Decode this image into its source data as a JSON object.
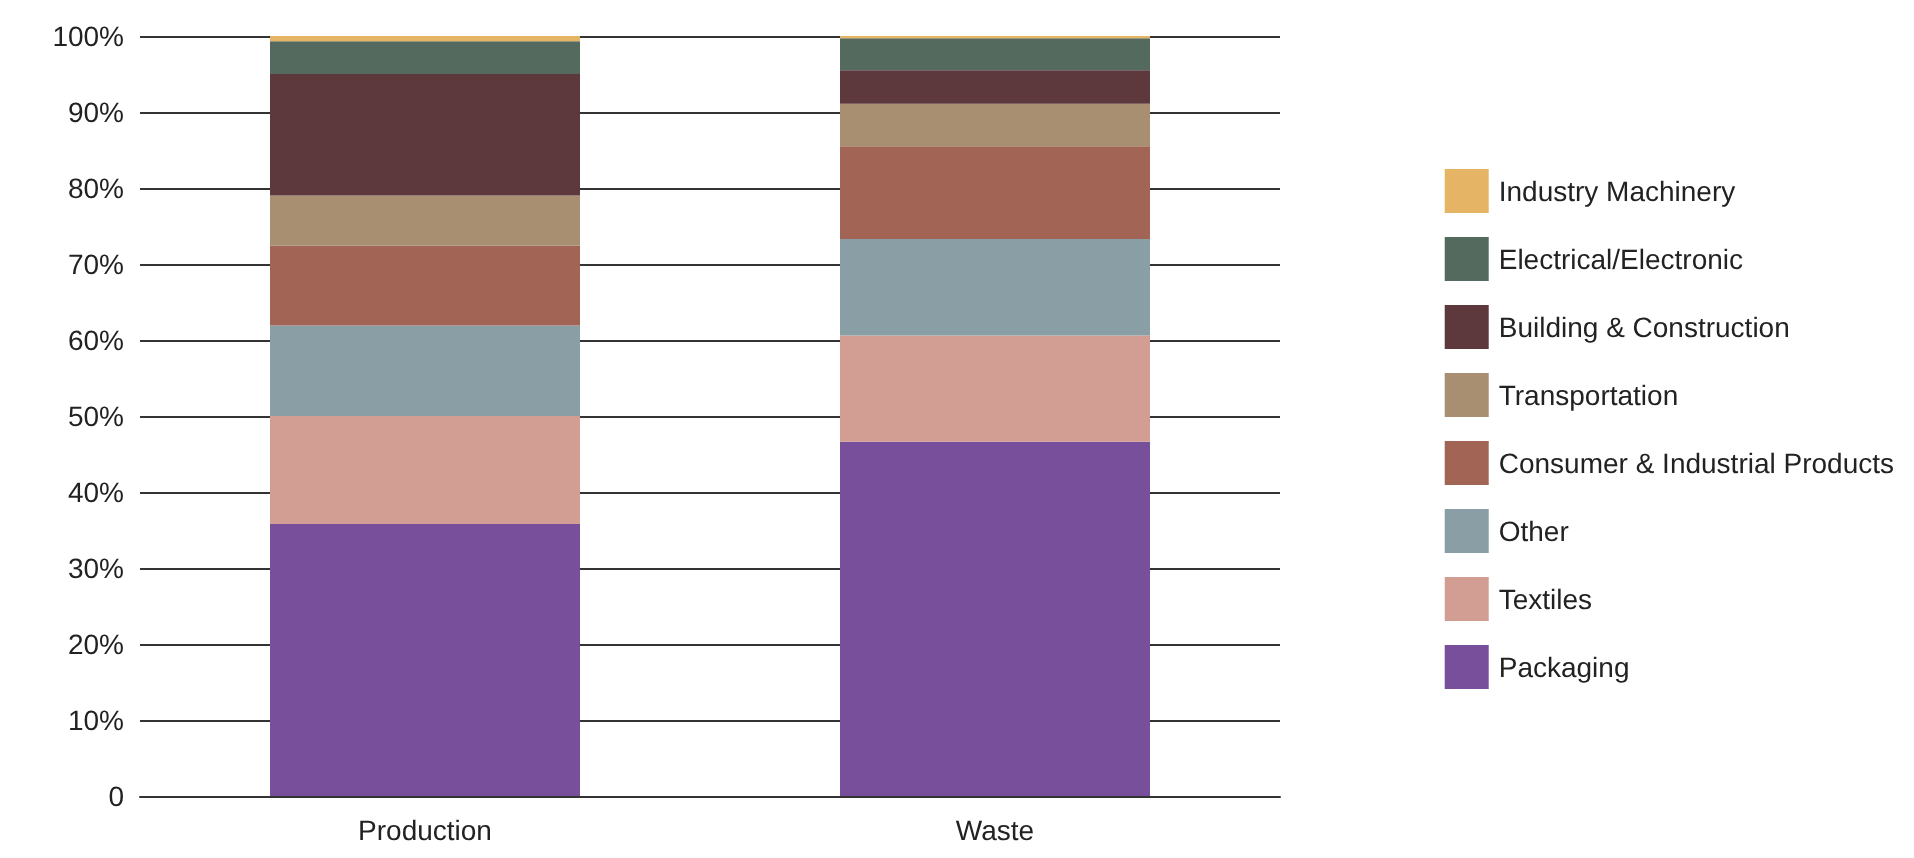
{
  "chart_data": {
    "type": "bar",
    "stacked": true,
    "categories": [
      "Production",
      "Waste"
    ],
    "series": [
      {
        "name": "Packaging",
        "color": "#774f9b",
        "values": [
          35.8,
          46.6
        ]
      },
      {
        "name": "Textiles",
        "color": "#d29e94",
        "values": [
          14.2,
          14.0
        ]
      },
      {
        "name": "Other",
        "color": "#8a9ea6",
        "values": [
          11.9,
          12.7
        ]
      },
      {
        "name": "Consumer & Industrial Products",
        "color": "#a26555",
        "values": [
          10.5,
          12.2
        ]
      },
      {
        "name": "Transportation",
        "color": "#a98f72",
        "values": [
          6.6,
          5.6
        ]
      },
      {
        "name": "Building & Construction",
        "color": "#5d393d",
        "values": [
          16.0,
          4.4
        ]
      },
      {
        "name": "Electrical/Electronic",
        "color": "#556a5f",
        "values": [
          4.3,
          4.2
        ]
      },
      {
        "name": "Industry Machinery",
        "color": "#e5b565",
        "values": [
          0.7,
          0.3
        ]
      }
    ],
    "ylim": [
      0,
      100
    ],
    "yticks": [
      {
        "value": 0,
        "label": "0"
      },
      {
        "value": 10,
        "label": "10%"
      },
      {
        "value": 20,
        "label": "20%"
      },
      {
        "value": 30,
        "label": "30%"
      },
      {
        "value": 40,
        "label": "40%"
      },
      {
        "value": 50,
        "label": "50%"
      },
      {
        "value": 60,
        "label": "60%"
      },
      {
        "value": 70,
        "label": "70%"
      },
      {
        "value": 80,
        "label": "80%"
      },
      {
        "value": 90,
        "label": "90%"
      },
      {
        "value": 100,
        "label": "100%"
      }
    ],
    "grid": "y",
    "legend": "right"
  }
}
